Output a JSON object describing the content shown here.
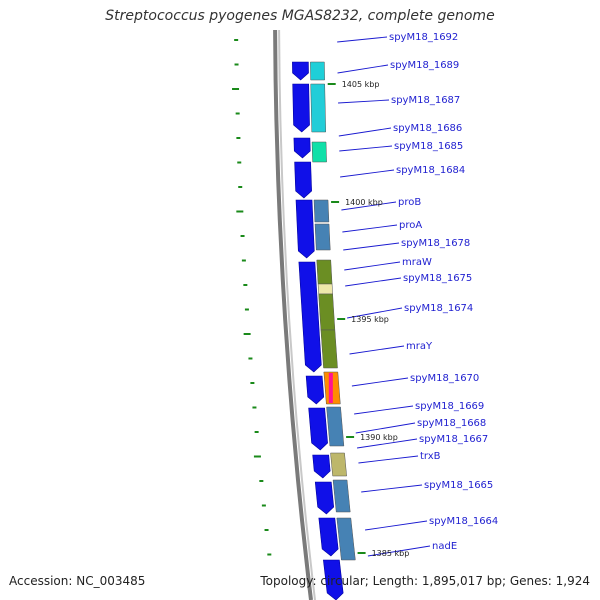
{
  "title": "Streptococcus pyogenes MGAS8232, complete genome",
  "accession": "Accession: NC_003485",
  "stats": "Topology: circular; Length: 1,895,017 bp; Genes: 1,924",
  "colors": {
    "strand_blue": "#1010e8",
    "connector": "#1a1ad0",
    "tick_green": "#1a8a1a",
    "backbone": "#8c8c8c"
  },
  "position_labels": [
    "1405 kbp",
    "1400 kbp",
    "1395 kbp",
    "1390 kbp",
    "1385 kbp"
  ],
  "genes": [
    {
      "name": "spyM18_1692",
      "color": "#ffffff"
    },
    {
      "name": "spyM18_1689",
      "color": "#1ecfd8"
    },
    {
      "name": "spyM18_1687",
      "color": "#22cdd8"
    },
    {
      "name": "spyM18_1686",
      "color": "#ffffff"
    },
    {
      "name": "spyM18_1685",
      "color": "#10e0a8"
    },
    {
      "name": "spyM18_1684",
      "color": "#ffffff"
    },
    {
      "name": "proB",
      "color": "#4682b4"
    },
    {
      "name": "proA",
      "color": "#4682b4"
    },
    {
      "name": "spyM18_1678",
      "color": "#ffffff"
    },
    {
      "name": "mraW",
      "color": "#6b8e23"
    },
    {
      "name": "spyM18_1675",
      "color": "#eee8aa"
    },
    {
      "name": "spyM18_1674",
      "color": "#6b8e23"
    },
    {
      "name": "mraY",
      "color": "#6b8e23"
    },
    {
      "name": "spyM18_1670",
      "color": "#ff8c00"
    },
    {
      "name": "spyM18_1669",
      "color": "#4682b4"
    },
    {
      "name": "spyM18_1668",
      "color": "#ffffff"
    },
    {
      "name": "spyM18_1667",
      "color": "#ffffff"
    },
    {
      "name": "trxB",
      "color": "#bdb76b"
    },
    {
      "name": "spyM18_1665",
      "color": "#4682b4"
    },
    {
      "name": "spyM18_1664",
      "color": "#ffffff"
    },
    {
      "name": "nadE",
      "color": "#4682b4"
    }
  ]
}
